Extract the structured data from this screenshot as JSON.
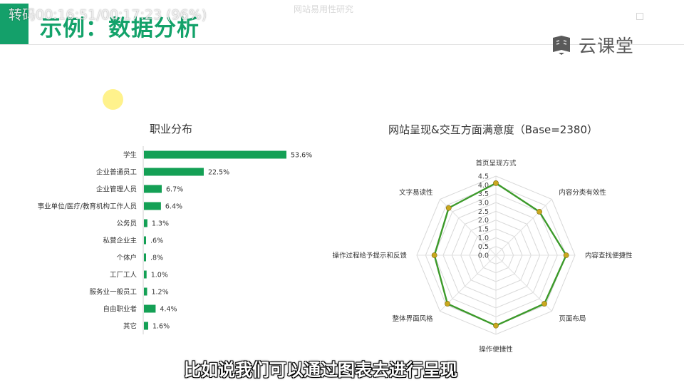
{
  "overlay": {
    "status": "转码00:16:51/00:17:23 (96%)",
    "faded_tab": "网站易用性研究"
  },
  "slide": {
    "title": "示例：数据分析",
    "brand": "云课堂"
  },
  "subtitle": "比如说我们可以通过图表去进行呈现",
  "colors": {
    "accent": "#14a06a",
    "bar": "#14a055",
    "radar_line": "#3c9a2a",
    "radar_point": "#c9a81f"
  },
  "chart_data": [
    {
      "type": "bar",
      "orientation": "horizontal",
      "title": "职业分布",
      "categories": [
        "学生",
        "企业普通员工",
        "企业管理人员",
        "事业单位/医疗/教育机构工作人员",
        "公务员",
        "私营企业主",
        "个体户",
        "工厂工人",
        "服务业一般员工",
        "自由职业者",
        "其它"
      ],
      "values": [
        53.6,
        22.5,
        6.7,
        6.4,
        1.3,
        0.6,
        0.8,
        1.0,
        1.2,
        4.4,
        1.6
      ],
      "value_labels": [
        "53.6%",
        "22.5%",
        "6.7%",
        "6.4%",
        "1.3%",
        ".6%",
        ".8%",
        "1.0%",
        "1.2%",
        "4.4%",
        "1.6%"
      ],
      "unit": "%"
    },
    {
      "type": "radar",
      "title": "网站呈现&交互方面满意度（Base=2380）",
      "axes": [
        "首页呈现方式",
        "内容分类有效性",
        "内容查找便捷性",
        "页面布局",
        "操作便捷性",
        "整体界面风格",
        "操作过程给予提示和反馈",
        "文字易读性"
      ],
      "values": [
        4.1,
        3.5,
        4.0,
        3.9,
        4.0,
        3.9,
        3.5,
        3.8
      ],
      "range": [
        0,
        4.5
      ],
      "tick_labels": [
        "0.0",
        "0.5",
        "1.0",
        "1.5",
        "2.0",
        "2.5",
        "3.0",
        "3.5",
        "4.0",
        "4.5"
      ],
      "grid": true
    }
  ]
}
